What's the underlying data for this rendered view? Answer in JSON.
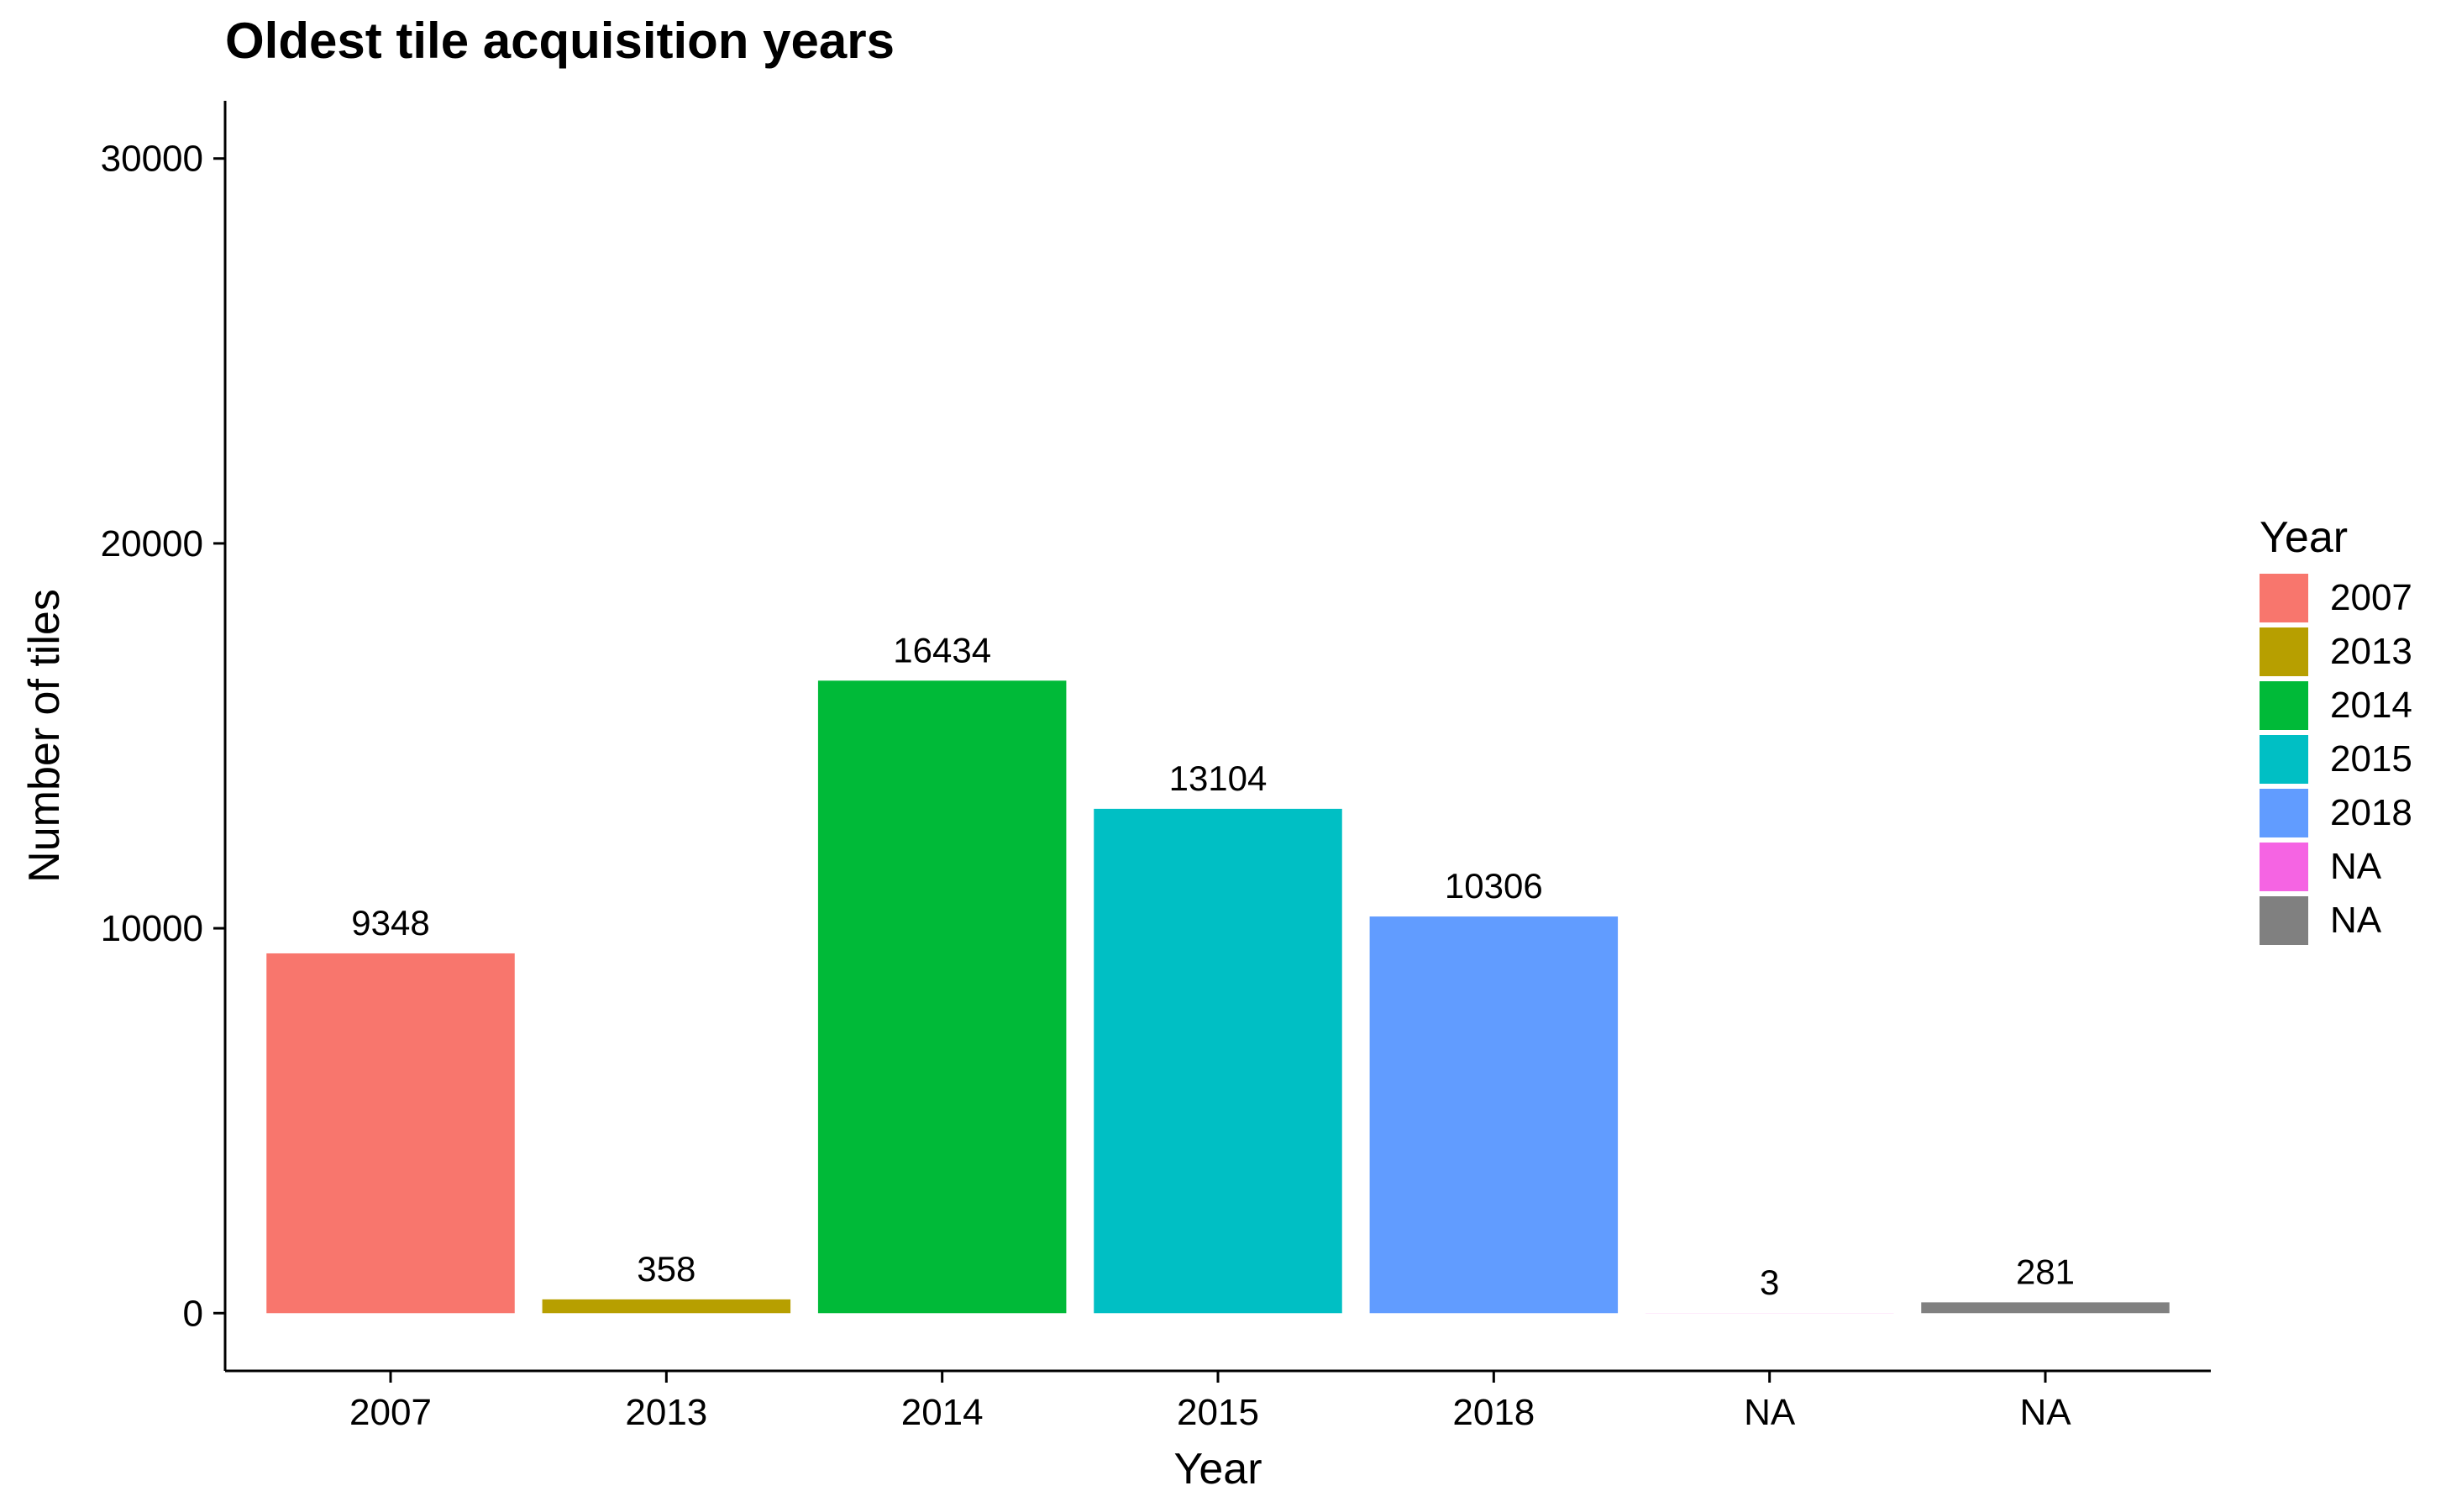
{
  "chart_data": {
    "type": "bar",
    "title": "Oldest tile acquisition years",
    "xlabel": "Year",
    "ylabel": "Number of tiles",
    "categories": [
      "2007",
      "2013",
      "2014",
      "2015",
      "2018",
      "NA",
      "NA"
    ],
    "values": [
      9348,
      358,
      16434,
      13104,
      10306,
      3,
      281
    ],
    "data_labels": [
      "9348",
      "358",
      "16434",
      "13104",
      "10306",
      "3",
      "281"
    ],
    "colors": [
      "#F8766D",
      "#B79F00",
      "#00BA38",
      "#00BFC4",
      "#619CFF",
      "#F564E3",
      "#808080"
    ],
    "ylim": [
      -1500,
      31500
    ],
    "yticks": [
      0,
      10000,
      20000,
      30000
    ],
    "ytick_labels": [
      "0",
      "10000",
      "20000",
      "30000"
    ],
    "grid": false,
    "legend": {
      "title": "Year",
      "position": "right",
      "items": [
        {
          "label": "2007",
          "color": "#F8766D"
        },
        {
          "label": "2013",
          "color": "#B79F00"
        },
        {
          "label": "2014",
          "color": "#00BA38"
        },
        {
          "label": "2015",
          "color": "#00BFC4"
        },
        {
          "label": "2018",
          "color": "#619CFF"
        },
        {
          "label": "NA",
          "color": "#F564E3"
        },
        {
          "label": "NA",
          "color": "#808080"
        }
      ]
    }
  }
}
